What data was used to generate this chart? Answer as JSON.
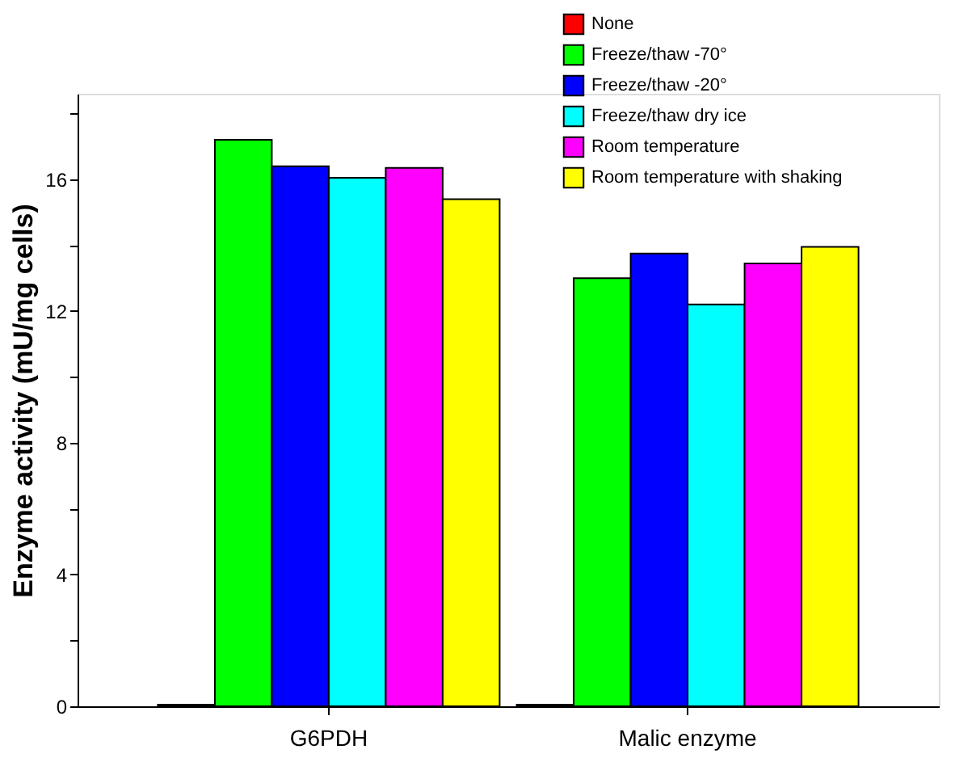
{
  "chart_data": {
    "type": "bar",
    "ylabel": "Enzyme activity (mU/mg cells)",
    "categories": [
      "G6PDH",
      "Malic enzyme"
    ],
    "series": [
      {
        "name": "None",
        "color": "#ff0000",
        "values": [
          0.05,
          0.05
        ]
      },
      {
        "name": "Freeze/thaw -70°",
        "color": "#00ff00",
        "values": [
          17.2,
          13.0
        ]
      },
      {
        "name": "Freeze/thaw -20°",
        "color": "#0000ff",
        "values": [
          16.4,
          13.75
        ]
      },
      {
        "name": "Freeze/thaw dry ice",
        "color": "#00ffff",
        "values": [
          16.05,
          12.2
        ]
      },
      {
        "name": "Room temperature",
        "color": "#ff00ff",
        "values": [
          16.35,
          13.45
        ]
      },
      {
        "name": "Room temperature with shaking",
        "color": "#ffff00",
        "values": [
          15.4,
          13.95
        ]
      }
    ],
    "ylim": [
      0,
      18.6
    ],
    "yticks": [
      0,
      {
        "value": 2,
        "label": null
      },
      4,
      {
        "value": 6,
        "label": null
      },
      8,
      {
        "value": 10,
        "label": null
      },
      12,
      {
        "value": 14,
        "label": null
      },
      16,
      {
        "value": 18,
        "label": null
      }
    ],
    "legend": "top right",
    "grid": false
  }
}
